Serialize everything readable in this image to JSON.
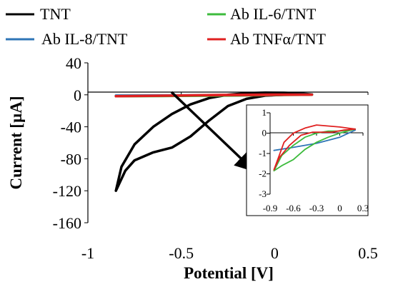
{
  "chart_data": [
    {
      "type": "line",
      "xlabel": "Potential [V]",
      "ylabel": "Current [µA]",
      "xlim": [
        -1,
        0.5
      ],
      "ylim": [
        -160,
        40
      ],
      "x_ticks": [
        "-1",
        "-0.5",
        "0",
        "0.5"
      ],
      "y_ticks": [
        "40",
        "0",
        "-40",
        "-80",
        "-120",
        "-160"
      ],
      "grid": false,
      "legend_position": "top",
      "series": [
        {
          "name": "TNT",
          "color": "#000000",
          "points": [
            [
              -0.85,
              -120
            ],
            [
              -0.8,
              -95
            ],
            [
              -0.75,
              -82
            ],
            [
              -0.65,
              -72
            ],
            [
              -0.55,
              -66
            ],
            [
              -0.45,
              -52
            ],
            [
              -0.35,
              -32
            ],
            [
              -0.25,
              -14
            ],
            [
              -0.15,
              -5
            ],
            [
              -0.05,
              -1
            ],
            [
              0.05,
              0
            ],
            [
              0.15,
              0
            ],
            [
              0.2,
              0.5
            ],
            [
              0.15,
              1.5
            ],
            [
              0.05,
              2.5
            ],
            [
              -0.05,
              2.7
            ],
            [
              -0.15,
              2
            ],
            [
              -0.25,
              0
            ],
            [
              -0.35,
              -4
            ],
            [
              -0.45,
              -12
            ],
            [
              -0.55,
              -24
            ],
            [
              -0.65,
              -40
            ],
            [
              -0.75,
              -62
            ],
            [
              -0.82,
              -90
            ],
            [
              -0.85,
              -120
            ]
          ]
        },
        {
          "name": "Ab IL-8/TNT",
          "color": "#2e75b6",
          "points": [
            [
              -0.85,
              -1
            ],
            [
              -0.5,
              -0.7
            ],
            [
              0,
              -0.2
            ],
            [
              0.2,
              0.5
            ]
          ]
        },
        {
          "name": "Ab IL-6/TNT",
          "color": "#3dbb3d",
          "points": [
            [
              -0.85,
              -1.8
            ],
            [
              -0.5,
              -1.2
            ],
            [
              0,
              -0.2
            ],
            [
              0.2,
              0.2
            ],
            [
              -0.2,
              -0.8
            ],
            [
              -0.6,
              -1.5
            ],
            [
              -0.85,
              -1.8
            ]
          ]
        },
        {
          "name": "Ab TNFα/TNT",
          "color": "#e02020",
          "points": [
            [
              -0.85,
              -1.8
            ],
            [
              -0.5,
              -0.8
            ],
            [
              -0.3,
              -0.2
            ],
            [
              0,
              0.3
            ],
            [
              0.2,
              0.2
            ],
            [
              0,
              0
            ],
            [
              -0.4,
              -0.5
            ],
            [
              -0.85,
              -1.8
            ]
          ]
        }
      ]
    },
    {
      "type": "line",
      "xlim": [
        -0.9,
        0.3
      ],
      "ylim": [
        -3,
        1
      ],
      "x_ticks": [
        "-0.9",
        "-0.6",
        "-0.3",
        "0",
        "0.3"
      ],
      "y_ticks": [
        "1",
        "0",
        "-1",
        "-2",
        "-3"
      ],
      "series": [
        {
          "color": "#2e75b6",
          "points": [
            [
              -0.85,
              -0.85
            ],
            [
              -0.6,
              -0.7
            ],
            [
              -0.3,
              -0.5
            ],
            [
              0,
              -0.2
            ],
            [
              0.2,
              0.15
            ]
          ]
        },
        {
          "color": "#3dbb3d",
          "points": [
            [
              -0.85,
              -1.85
            ],
            [
              -0.75,
              -1.6
            ],
            [
              -0.6,
              -1.3
            ],
            [
              -0.45,
              -0.8
            ],
            [
              -0.3,
              -0.45
            ],
            [
              -0.15,
              -0.2
            ],
            [
              0,
              0.0
            ],
            [
              0.1,
              0.1
            ],
            [
              0.2,
              0.2
            ],
            [
              0.1,
              0.15
            ],
            [
              0,
              0.1
            ],
            [
              -0.15,
              0.1
            ],
            [
              -0.3,
              0.0
            ],
            [
              -0.45,
              -0.2
            ],
            [
              -0.6,
              -0.6
            ],
            [
              -0.75,
              -1.1
            ],
            [
              -0.85,
              -1.85
            ]
          ]
        },
        {
          "color": "#e02020",
          "points": [
            [
              -0.85,
              -1.8
            ],
            [
              -0.78,
              -1.2
            ],
            [
              -0.65,
              -0.6
            ],
            [
              -0.5,
              -0.1
            ],
            [
              -0.35,
              0.05
            ],
            [
              -0.25,
              0.05
            ],
            [
              -0.1,
              0.05
            ],
            [
              0.05,
              0.15
            ],
            [
              0.2,
              0.2
            ],
            [
              0.1,
              0.25
            ],
            [
              0,
              0.3
            ],
            [
              -0.15,
              0.35
            ],
            [
              -0.3,
              0.4
            ],
            [
              -0.45,
              0.25
            ],
            [
              -0.6,
              0.0
            ],
            [
              -0.72,
              -0.45
            ],
            [
              -0.85,
              -1.8
            ]
          ]
        }
      ]
    }
  ]
}
